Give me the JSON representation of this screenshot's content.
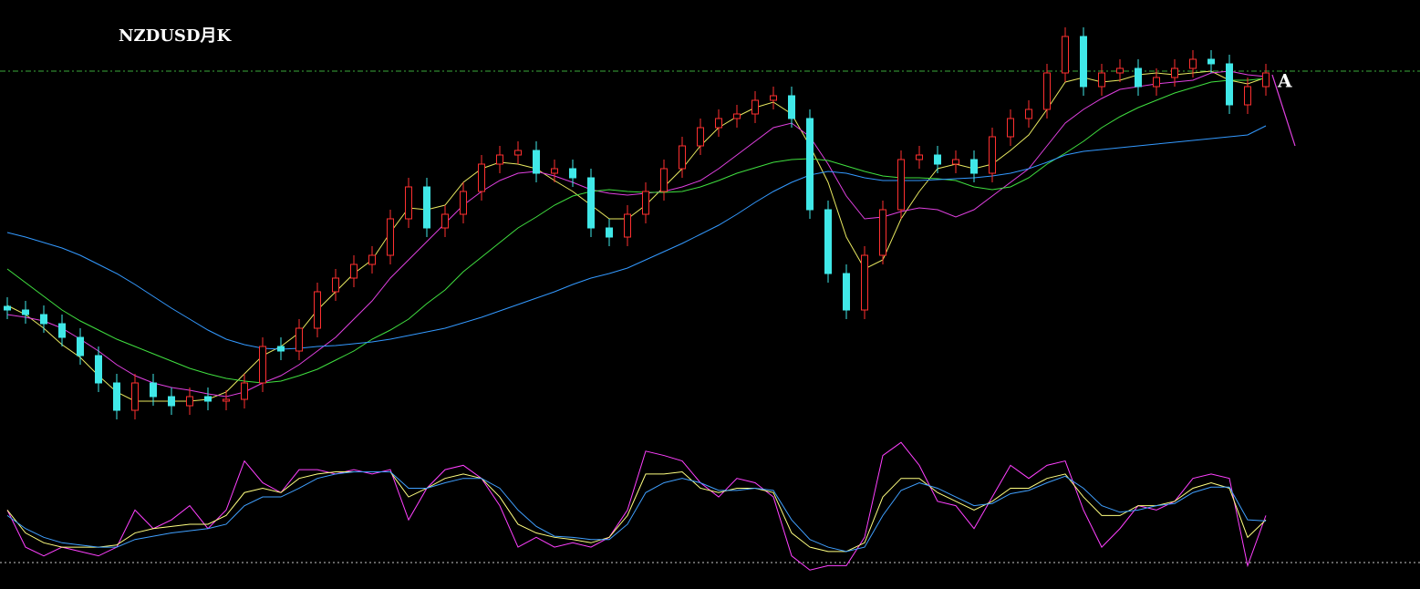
{
  "chart_data": [
    {
      "type": "candlestick",
      "title": "NZDUSD月K",
      "annotation": "A",
      "ylim": [
        0,
        646
      ],
      "up_color": "#ff3030",
      "down_color": "#40e8e8",
      "open": [
        310,
        306,
        301,
        291,
        276,
        256,
        226,
        196,
        226,
        211,
        201,
        211,
        206,
        208,
        226,
        266,
        261,
        286,
        326,
        341,
        356,
        366,
        406,
        441,
        396,
        411,
        436,
        466,
        476,
        481,
        456,
        461,
        451,
        396,
        386,
        411,
        436,
        461,
        486,
        506,
        516,
        521,
        536,
        541,
        516,
        416,
        346,
        306,
        366,
        416,
        471,
        476,
        466,
        471,
        456,
        496,
        516,
        526,
        566,
        606,
        551,
        566,
        571,
        551,
        561,
        571,
        581,
        576,
        531,
        551
      ],
      "high": [
        320,
        316,
        311,
        301,
        286,
        266,
        236,
        236,
        236,
        221,
        221,
        221,
        218,
        236,
        276,
        276,
        296,
        336,
        351,
        366,
        376,
        416,
        451,
        451,
        421,
        446,
        476,
        486,
        491,
        491,
        471,
        471,
        461,
        406,
        421,
        446,
        471,
        496,
        516,
        526,
        531,
        546,
        551,
        551,
        526,
        426,
        356,
        376,
        426,
        481,
        486,
        486,
        481,
        481,
        506,
        526,
        536,
        576,
        616,
        616,
        576,
        581,
        581,
        571,
        581,
        591,
        591,
        586,
        561,
        576
      ],
      "low": [
        296,
        291,
        281,
        266,
        246,
        216,
        186,
        186,
        201,
        191,
        191,
        196,
        196,
        198,
        216,
        251,
        251,
        276,
        316,
        331,
        346,
        356,
        396,
        386,
        386,
        401,
        426,
        456,
        466,
        446,
        446,
        441,
        386,
        376,
        376,
        401,
        426,
        451,
        476,
        496,
        506,
        511,
        526,
        506,
        406,
        336,
        296,
        296,
        356,
        406,
        461,
        456,
        456,
        446,
        446,
        486,
        506,
        516,
        556,
        541,
        541,
        556,
        541,
        541,
        551,
        561,
        566,
        521,
        521,
        541
      ],
      "close": [
        306,
        301,
        291,
        276,
        256,
        226,
        196,
        226,
        211,
        201,
        211,
        206,
        208,
        226,
        266,
        261,
        286,
        326,
        341,
        356,
        366,
        406,
        441,
        396,
        411,
        436,
        466,
        476,
        481,
        456,
        461,
        451,
        396,
        386,
        411,
        436,
        461,
        486,
        506,
        516,
        521,
        536,
        541,
        516,
        416,
        346,
        306,
        366,
        416,
        471,
        476,
        466,
        471,
        456,
        496,
        516,
        526,
        566,
        606,
        551,
        566,
        571,
        551,
        561,
        571,
        581,
        576,
        531,
        551,
        566
      ],
      "series": [
        {
          "color": "#e8e860",
          "values": [
            311,
            301,
            286,
            268,
            254,
            234,
            216,
            206,
            206,
            206,
            206,
            208,
            216,
            236,
            256,
            266,
            281,
            306,
            326,
            346,
            361,
            391,
            418,
            416,
            421,
            446,
            461,
            468,
            466,
            461,
            448,
            436,
            421,
            406,
            406,
            421,
            441,
            461,
            486,
            506,
            518,
            528,
            534,
            521,
            486,
            446,
            386,
            351,
            361,
            406,
            436,
            461,
            466,
            461,
            466,
            481,
            498,
            526,
            556,
            561,
            556,
            558,
            564,
            566,
            564,
            566,
            568,
            558,
            554,
            561
          ]
        },
        {
          "color": "#e040e0",
          "values": [
            301,
            298,
            294,
            286,
            274,
            261,
            246,
            234,
            226,
            221,
            218,
            214,
            211,
            216,
            226,
            234,
            246,
            261,
            276,
            296,
            316,
            341,
            361,
            381,
            401,
            421,
            436,
            448,
            456,
            458,
            453,
            446,
            438,
            434,
            432,
            434,
            436,
            441,
            448,
            461,
            476,
            491,
            506,
            511,
            496,
            466,
            431,
            406,
            408,
            414,
            418,
            416,
            408,
            416,
            431,
            446,
            461,
            486,
            511,
            526,
            538,
            548,
            551,
            554,
            556,
            558,
            566,
            568,
            564,
            562
          ]
        },
        {
          "color": "#40e040",
          "values": [
            351,
            336,
            321,
            306,
            294,
            284,
            274,
            266,
            258,
            250,
            242,
            236,
            231,
            228,
            226,
            228,
            234,
            241,
            251,
            261,
            274,
            284,
            296,
            313,
            328,
            348,
            364,
            380,
            396,
            408,
            421,
            431,
            436,
            438,
            436,
            435,
            435,
            436,
            441,
            448,
            456,
            462,
            468,
            471,
            472,
            470,
            464,
            458,
            453,
            451,
            451,
            450,
            448,
            441,
            438,
            441,
            451,
            466,
            478,
            491,
            506,
            518,
            528,
            536,
            544,
            550,
            556,
            558,
            558,
            560
          ]
        },
        {
          "color": "#3399ff",
          "values": [
            391,
            386,
            380,
            374,
            366,
            356,
            346,
            334,
            321,
            308,
            296,
            284,
            274,
            268,
            264,
            263,
            264,
            266,
            267,
            269,
            271,
            274,
            278,
            282,
            286,
            292,
            298,
            305,
            312,
            319,
            326,
            334,
            341,
            346,
            352,
            361,
            370,
            379,
            389,
            399,
            411,
            424,
            436,
            446,
            454,
            458,
            456,
            451,
            448,
            448,
            448,
            449,
            450,
            451,
            453,
            456,
            461,
            468,
            476,
            480,
            482,
            484,
            486,
            488,
            490,
            492,
            494,
            496,
            498,
            508
          ]
        }
      ]
    },
    {
      "type": "line",
      "ylim": [
        -11,
        106
      ],
      "series": [
        {
          "color": "#ff40ff",
          "values": [
            48,
            14,
            6,
            14,
            10,
            6,
            14,
            48,
            31,
            39,
            52,
            31,
            48,
            93,
            73,
            64,
            85,
            85,
            81,
            85,
            81,
            85,
            39,
            68,
            85,
            89,
            77,
            52,
            14,
            23,
            14,
            18,
            14,
            23,
            48,
            102,
            98,
            93,
            73,
            60,
            77,
            73,
            60,
            6,
            -7,
            -3,
            -3,
            23,
            98,
            110,
            89,
            56,
            52,
            31,
            60,
            89,
            77,
            89,
            93,
            48,
            14,
            31,
            52,
            48,
            56,
            77,
            81,
            77,
            -3,
            43
          ]
        },
        {
          "color": "#ffff80",
          "values": [
            48,
            27,
            18,
            14,
            14,
            14,
            16,
            27,
            31,
            33,
            35,
            35,
            43,
            64,
            68,
            64,
            77,
            81,
            83,
            83,
            83,
            83,
            60,
            68,
            77,
            81,
            77,
            60,
            35,
            27,
            23,
            21,
            18,
            23,
            43,
            81,
            81,
            83,
            68,
            64,
            68,
            68,
            64,
            27,
            14,
            10,
            10,
            18,
            60,
            77,
            77,
            64,
            56,
            48,
            56,
            68,
            68,
            77,
            81,
            60,
            43,
            43,
            52,
            52,
            56,
            68,
            73,
            68,
            23,
            39
          ]
        },
        {
          "color": "#40a0ff",
          "values": [
            43,
            31,
            23,
            18,
            16,
            14,
            14,
            21,
            24,
            27,
            29,
            31,
            35,
            52,
            60,
            60,
            68,
            77,
            81,
            83,
            83,
            83,
            68,
            68,
            73,
            77,
            77,
            68,
            48,
            33,
            24,
            23,
            21,
            21,
            35,
            64,
            73,
            77,
            73,
            66,
            66,
            68,
            66,
            39,
            21,
            14,
            10,
            14,
            43,
            66,
            73,
            68,
            60,
            52,
            54,
            63,
            66,
            73,
            79,
            68,
            52,
            46,
            48,
            52,
            54,
            64,
            69,
            69,
            39,
            38
          ]
        }
      ]
    }
  ]
}
